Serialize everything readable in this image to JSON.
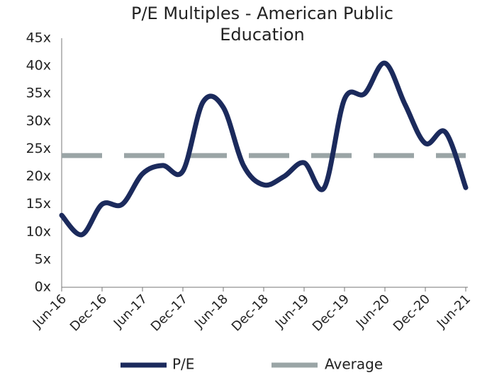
{
  "chart_data": {
    "type": "line",
    "title": "P/E Multiples - American Public Education",
    "categories": [
      "Jun-16",
      null,
      "Dec-16",
      null,
      "Jun-17",
      null,
      "Dec-17",
      null,
      "Jun-18",
      null,
      "Dec-18",
      null,
      "Jun-19",
      null,
      "Dec-19",
      null,
      "Jun-20",
      null,
      "Dec-20",
      null,
      "Jun-21"
    ],
    "series": [
      {
        "name": "P/E",
        "color": "#1b2a5c",
        "values": [
          13,
          9.5,
          15,
          15,
          20.5,
          22,
          21,
          33.5,
          32.5,
          22,
          18.5,
          20,
          22.5,
          18,
          34,
          35,
          40.5,
          33,
          26,
          28,
          18
        ]
      },
      {
        "name": "Average",
        "color": "#9aa5a6",
        "dashed": true,
        "values": [
          23.8,
          23.8,
          23.8,
          23.8,
          23.8,
          23.8,
          23.8,
          23.8,
          23.8,
          23.8,
          23.8,
          23.8,
          23.8,
          23.8,
          23.8,
          23.8,
          23.8,
          23.8,
          23.8,
          23.8,
          23.8
        ]
      }
    ],
    "ylim": [
      0,
      45
    ],
    "yticks": [
      {
        "value": 0,
        "label": "0x"
      },
      {
        "value": 5,
        "label": "5x"
      },
      {
        "value": 10,
        "label": "10x"
      },
      {
        "value": 15,
        "label": "15x"
      },
      {
        "value": 20,
        "label": "20x"
      },
      {
        "value": 25,
        "label": "25x"
      },
      {
        "value": 30,
        "label": "30x"
      },
      {
        "value": 35,
        "label": "35x"
      },
      {
        "value": 40,
        "label": "40x"
      },
      {
        "value": 45,
        "label": "45x"
      }
    ],
    "legend": "bottom"
  }
}
